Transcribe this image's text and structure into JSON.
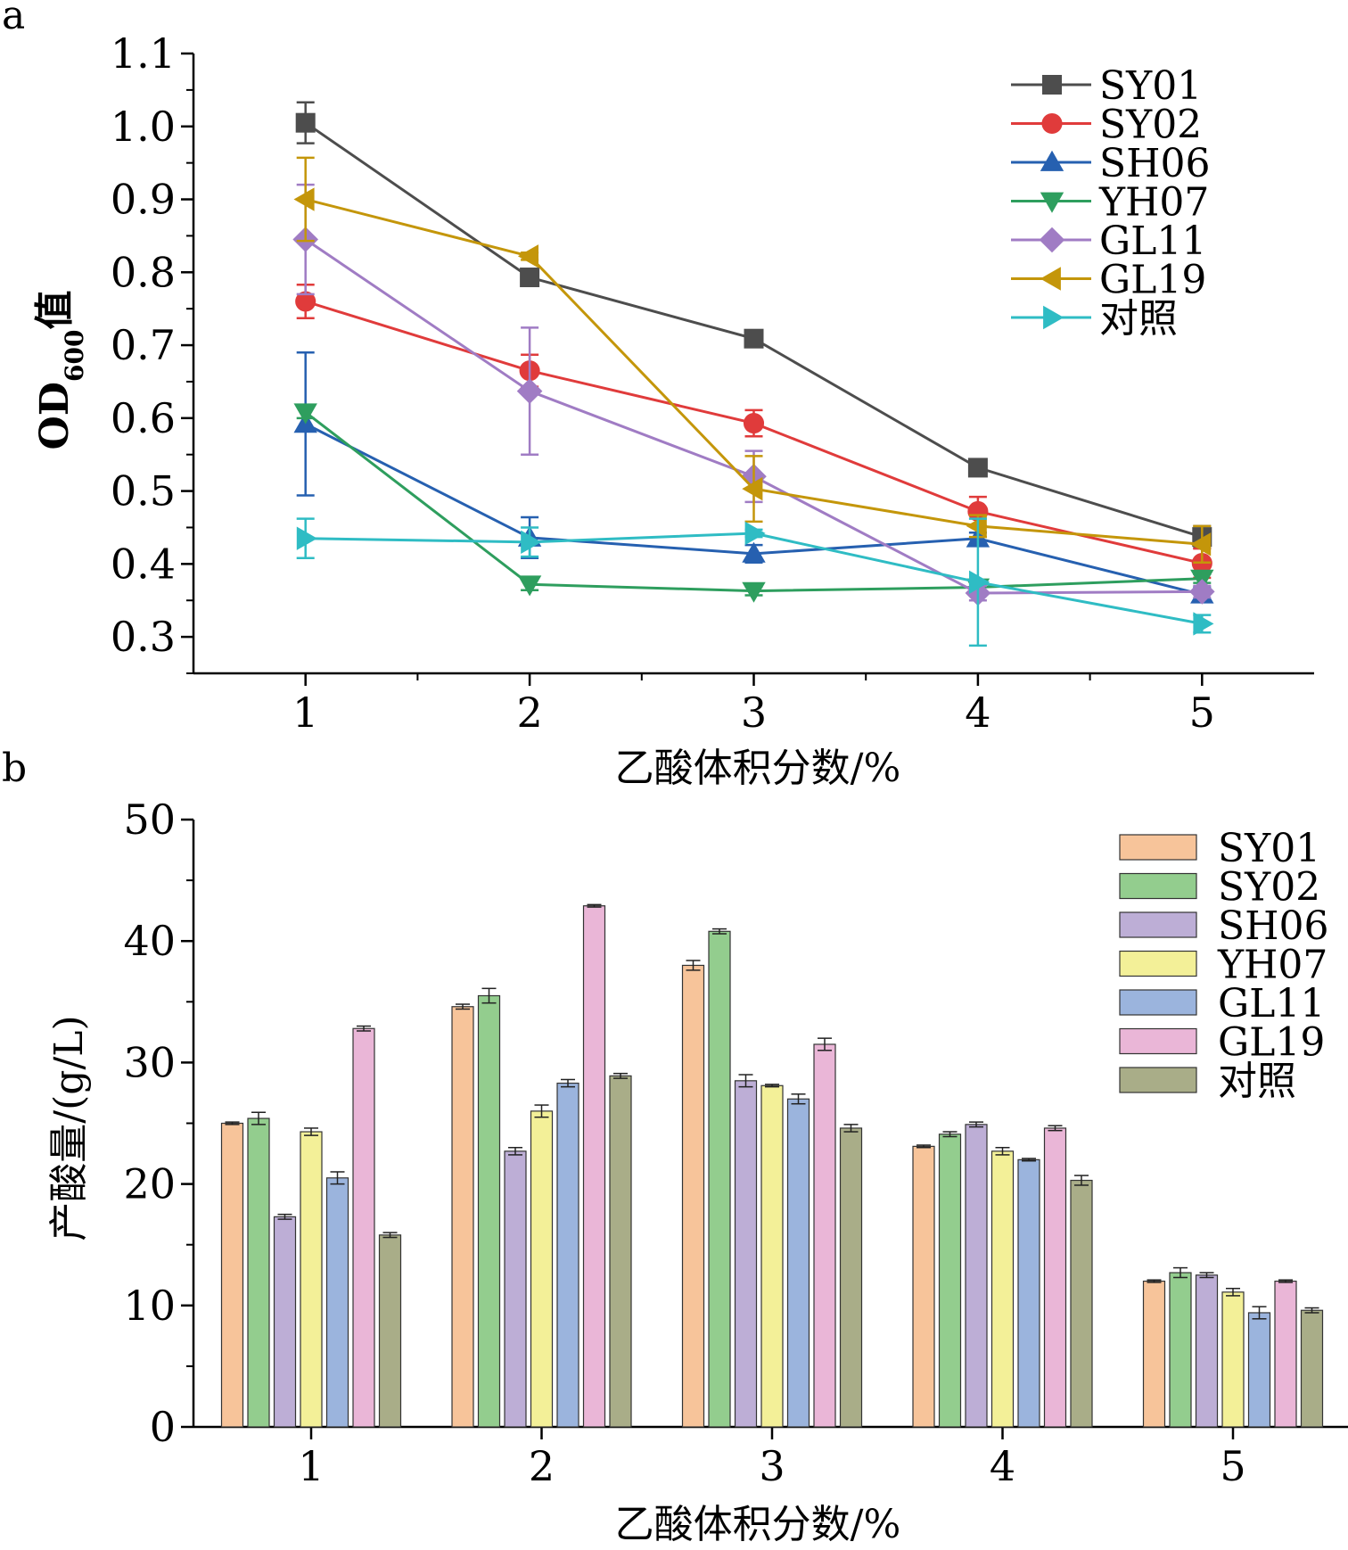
{
  "chart_data": [
    {
      "panel": "a",
      "type": "line",
      "xlabel": "乙酸体积分数/%",
      "ylabel": {
        "main": "OD",
        "sub": "600",
        "suffix": "值"
      },
      "xlim": [
        0.5,
        5.5
      ],
      "ylim": [
        0.25,
        1.1
      ],
      "x": [
        1,
        2,
        3,
        4,
        5
      ],
      "x_ticks": [
        "1",
        "2",
        "3",
        "4",
        "5"
      ],
      "y_ticks": [
        "0.3",
        "0.4",
        "0.5",
        "0.6",
        "0.7",
        "0.8",
        "0.9",
        "1.0",
        "1.1"
      ],
      "legend_position": "top-right",
      "series": [
        {
          "name": "SY01",
          "color": "#4d4d4d",
          "marker": "square",
          "values": [
            1.005,
            0.793,
            0.709,
            0.532,
            0.437
          ],
          "errors": [
            0.028,
            0.005,
            0.006,
            0.01,
            0.015
          ]
        },
        {
          "name": "SY02",
          "color": "#e03b3b",
          "marker": "circle",
          "values": [
            0.76,
            0.665,
            0.593,
            0.472,
            0.401
          ],
          "errors": [
            0.023,
            0.022,
            0.018,
            0.02,
            0.02
          ]
        },
        {
          "name": "SH06",
          "color": "#2660b0",
          "marker": "triangle-up",
          "values": [
            0.592,
            0.436,
            0.414,
            0.435,
            0.358
          ],
          "errors": [
            0.098,
            0.028,
            0.012,
            0.008,
            0.01
          ]
        },
        {
          "name": "YH07",
          "color": "#2e9e5e",
          "marker": "triangle-down",
          "values": [
            0.608,
            0.372,
            0.363,
            0.368,
            0.38
          ],
          "errors": [
            0.008,
            0.008,
            0.006,
            0.005,
            0.006
          ]
        },
        {
          "name": "GL11",
          "color": "#a07cc4",
          "marker": "diamond",
          "values": [
            0.845,
            0.637,
            0.52,
            0.36,
            0.362
          ],
          "errors": [
            0.075,
            0.087,
            0.035,
            0.01,
            0.008
          ]
        },
        {
          "name": "GL19",
          "color": "#c4960a",
          "marker": "triangle-left",
          "values": [
            0.9,
            0.822,
            0.503,
            0.452,
            0.427
          ],
          "errors": [
            0.057,
            0.005,
            0.045,
            0.015,
            0.025
          ]
        },
        {
          "name": "对照",
          "color": "#2fbcc4",
          "marker": "triangle-right",
          "values": [
            0.435,
            0.43,
            0.442,
            0.375,
            0.318
          ],
          "errors": [
            0.027,
            0.02,
            0.005,
            0.087,
            0.012
          ]
        }
      ]
    },
    {
      "panel": "b",
      "type": "bar",
      "xlabel": "乙酸体积分数/%",
      "ylabel": "产酸量/(g/L)",
      "ylim": [
        0,
        50
      ],
      "categories": [
        "1",
        "2",
        "3",
        "4",
        "5"
      ],
      "y_ticks": [
        "0",
        "10",
        "20",
        "30",
        "40",
        "50"
      ],
      "legend_position": "top-right",
      "series": [
        {
          "name": "SY01",
          "color": "#f7c49a",
          "values": [
            25.0,
            34.6,
            38.0,
            23.1,
            12.0
          ],
          "errors": [
            0.1,
            0.2,
            0.4,
            0.1,
            0.1
          ]
        },
        {
          "name": "SY02",
          "color": "#93cd8e",
          "values": [
            25.4,
            35.5,
            40.8,
            24.1,
            12.7
          ],
          "errors": [
            0.5,
            0.6,
            0.2,
            0.2,
            0.4
          ]
        },
        {
          "name": "SH06",
          "color": "#bdaed6",
          "values": [
            17.3,
            22.7,
            28.5,
            24.9,
            12.5
          ],
          "errors": [
            0.2,
            0.3,
            0.5,
            0.2,
            0.2
          ]
        },
        {
          "name": "YH07",
          "color": "#f3f098",
          "values": [
            24.3,
            26.0,
            28.1,
            22.7,
            11.1
          ],
          "errors": [
            0.3,
            0.5,
            0.1,
            0.3,
            0.3
          ]
        },
        {
          "name": "GL11",
          "color": "#9bb4dd",
          "values": [
            20.5,
            28.3,
            27.0,
            22.0,
            9.4
          ],
          "errors": [
            0.5,
            0.3,
            0.4,
            0.1,
            0.5
          ]
        },
        {
          "name": "GL19",
          "color": "#eab6d7",
          "values": [
            32.8,
            42.9,
            31.5,
            24.6,
            12.0
          ],
          "errors": [
            0.2,
            0.1,
            0.5,
            0.2,
            0.1
          ]
        },
        {
          "name": "对照",
          "color": "#a9ad88",
          "values": [
            15.8,
            28.9,
            24.6,
            20.3,
            9.6
          ],
          "errors": [
            0.2,
            0.2,
            0.3,
            0.4,
            0.2
          ]
        }
      ]
    }
  ]
}
